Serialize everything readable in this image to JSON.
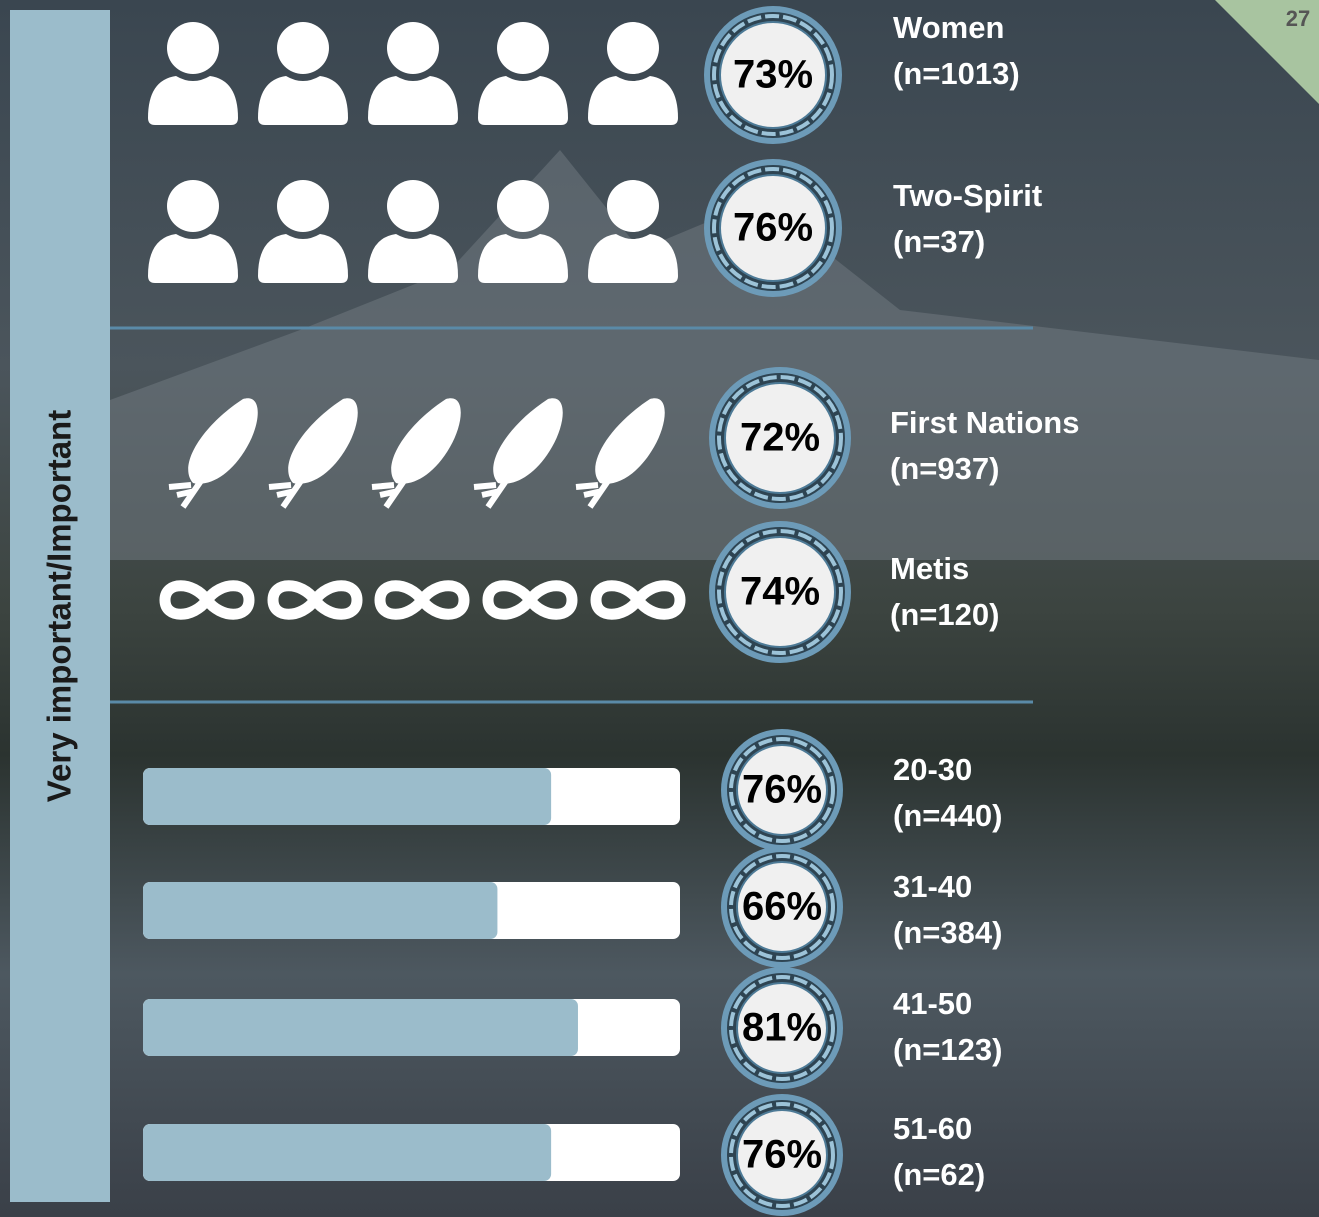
{
  "page_number": "27",
  "side_label": "Very important/Important",
  "groups": [
    {
      "icon": "person",
      "items": [
        {
          "label": "Women",
          "n": "(n=1013)",
          "value": 73,
          "value_label": "73%"
        },
        {
          "label": "Two-Spirit",
          "n": "(n=37)",
          "value": 76,
          "value_label": "76%"
        }
      ]
    },
    {
      "icon": "mixed",
      "items": [
        {
          "icon": "feather",
          "label": "First Nations",
          "n": "(n=937)",
          "value": 72,
          "value_label": "72%"
        },
        {
          "icon": "infinity",
          "label": "Metis",
          "n": "(n=120)",
          "value": 74,
          "value_label": "74%"
        }
      ]
    },
    {
      "icon": "bar",
      "items": [
        {
          "label": "20-30",
          "n": "(n=440)",
          "value": 76,
          "value_label": "76%"
        },
        {
          "label": "31-40",
          "n": "(n=384)",
          "value": 66,
          "value_label": "66%"
        },
        {
          "label": "41-50",
          "n": "(n=123)",
          "value": 81,
          "value_label": "81%"
        },
        {
          "label": "51-60",
          "n": "(n=62)",
          "value": 76,
          "value_label": "76%"
        }
      ]
    }
  ]
}
